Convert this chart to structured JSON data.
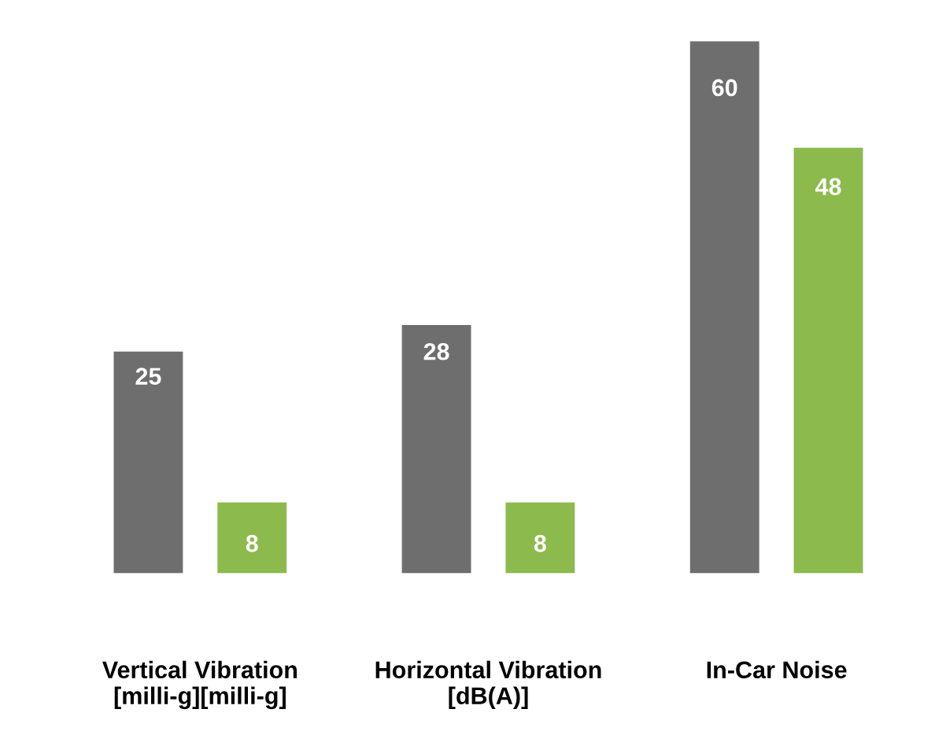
{
  "chart_data": {
    "type": "bar",
    "categories": [
      "Vertical Vibration\n[milli-g][milli-g]",
      "Horizontal Vibration\n[dB(A)]",
      "In-Car Noise"
    ],
    "series": [
      {
        "color": "#6e6e6e",
        "values": [
          25,
          28,
          60
        ]
      },
      {
        "color": "#8cba4c",
        "values": [
          8,
          8,
          48
        ]
      }
    ],
    "data_labels": true
  }
}
